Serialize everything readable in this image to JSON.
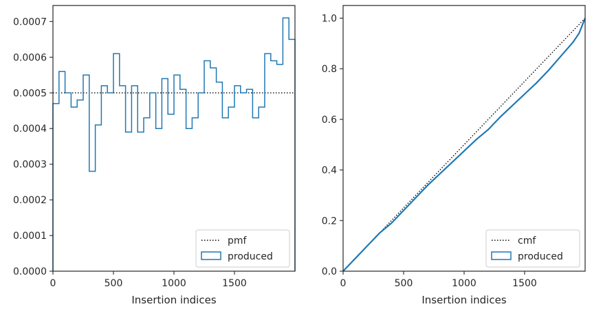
{
  "chart_data": [
    {
      "type": "histogram-step",
      "xlabel": "Insertion indices",
      "ylabel": "",
      "xlim": [
        0,
        2000
      ],
      "ylim": [
        0,
        0.000745
      ],
      "xticks": [
        0,
        500,
        1000,
        1500
      ],
      "xtick_labels": [
        "0",
        "500",
        "1000",
        "1500"
      ],
      "yticks": [
        0,
        0.0001,
        0.0002,
        0.0003,
        0.0004,
        0.0005,
        0.0006,
        0.0007
      ],
      "ytick_labels": [
        "0.0000",
        "0.0001",
        "0.0002",
        "0.0003",
        "0.0004",
        "0.0005",
        "0.0006",
        "0.0007"
      ],
      "bin_edges": [
        0,
        50,
        100,
        150,
        200,
        250,
        300,
        350,
        400,
        450,
        500,
        550,
        600,
        650,
        700,
        750,
        800,
        850,
        900,
        950,
        1000,
        1050,
        1100,
        1150,
        1200,
        1250,
        1300,
        1350,
        1400,
        1450,
        1500,
        1550,
        1600,
        1650,
        1700,
        1750,
        1800,
        1850,
        1900,
        1950,
        2000
      ],
      "series": [
        {
          "name": "pmf",
          "style": "dotted",
          "color": "#000000",
          "y": 0.0005
        },
        {
          "name": "produced",
          "style": "step",
          "color": "#1f77b4",
          "values": [
            0.00047,
            0.00056,
            0.0005,
            0.00046,
            0.00048,
            0.00055,
            0.00028,
            0.00041,
            0.00052,
            0.0005,
            0.00061,
            0.00052,
            0.00039,
            0.00052,
            0.00039,
            0.00043,
            0.0005,
            0.0004,
            0.00054,
            0.00044,
            0.00055,
            0.00051,
            0.0004,
            0.00043,
            0.0005,
            0.00059,
            0.00057,
            0.00053,
            0.00043,
            0.00046,
            0.00052,
            0.0005,
            0.00051,
            0.00043,
            0.00046,
            0.00061,
            0.00059,
            0.00058,
            0.00071,
            0.00065
          ]
        }
      ],
      "legend": {
        "position": "lower right",
        "entries": [
          "pmf",
          "produced"
        ]
      }
    },
    {
      "type": "line",
      "xlabel": "Insertion indices",
      "ylabel": "",
      "xlim": [
        0,
        2000
      ],
      "ylim": [
        0,
        1.05
      ],
      "xticks": [
        0,
        500,
        1000,
        1500
      ],
      "xtick_labels": [
        "0",
        "500",
        "1000",
        "1500"
      ],
      "yticks": [
        0,
        0.2,
        0.4,
        0.6,
        0.8,
        1.0
      ],
      "ytick_labels": [
        "0.0",
        "0.2",
        "0.4",
        "0.6",
        "0.8",
        "1.0"
      ],
      "series": [
        {
          "name": "cmf",
          "style": "dotted",
          "color": "#000000",
          "x": [
            0,
            2000
          ],
          "y": [
            0,
            1
          ]
        },
        {
          "name": "produced",
          "style": "solid",
          "color": "#1f77b4",
          "x": [
            0,
            100,
            200,
            300,
            400,
            500,
            600,
            700,
            800,
            900,
            1000,
            1100,
            1200,
            1300,
            1400,
            1500,
            1600,
            1700,
            1800,
            1900,
            1950,
            2000
          ],
          "y": [
            0,
            0.05,
            0.1,
            0.15,
            0.19,
            0.24,
            0.29,
            0.34,
            0.385,
            0.43,
            0.475,
            0.52,
            0.56,
            0.61,
            0.655,
            0.7,
            0.745,
            0.795,
            0.85,
            0.905,
            0.94,
            1.0
          ]
        }
      ],
      "legend": {
        "position": "lower right",
        "entries": [
          "cmf",
          "produced"
        ]
      }
    }
  ]
}
